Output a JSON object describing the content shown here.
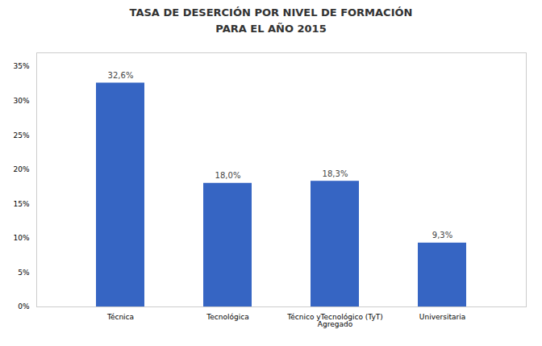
{
  "chart_data": {
    "type": "bar",
    "title": "TASA DE DESERCIÓN POR NIVEL DE FORMACIÓN\nPARA EL AÑO 2015",
    "categories": [
      "Técnica",
      "Tecnológica",
      "Técnico yTecnológico (TyT)\nAgregado",
      "Universitaria"
    ],
    "values": [
      32.6,
      18.0,
      18.3,
      9.3
    ],
    "value_labels": [
      "32,6%",
      "18,0%",
      "18,3%",
      "9,3%"
    ],
    "data_labels": true,
    "color": "#3665c3",
    "ylim": [
      0,
      37
    ],
    "yticks": [
      {
        "value": 0,
        "label": "0%"
      },
      {
        "value": 5,
        "label": "5%"
      },
      {
        "value": 10,
        "label": "10%"
      },
      {
        "value": 15,
        "label": "15%"
      },
      {
        "value": 20,
        "label": "20%"
      },
      {
        "value": 25,
        "label": "25%"
      },
      {
        "value": 30,
        "label": "30%"
      },
      {
        "value": 35,
        "label": "35%"
      }
    ],
    "grid": false
  }
}
